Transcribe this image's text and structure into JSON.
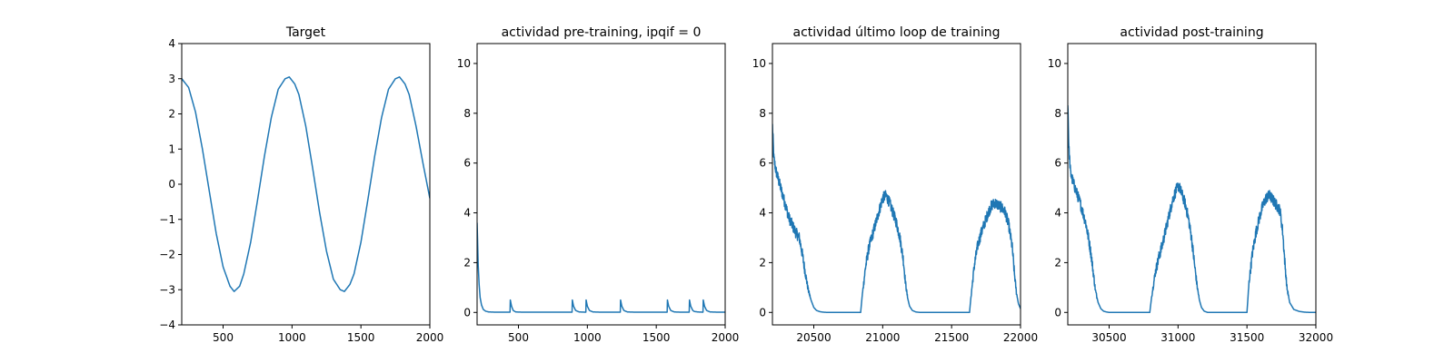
{
  "chart_data": [
    {
      "type": "line",
      "title": "Target",
      "xlim": [
        200,
        2000
      ],
      "ylim": [
        -4,
        4
      ],
      "xticks": [
        500,
        1000,
        1500,
        2000
      ],
      "xtick_labels": [
        "500",
        "1000",
        "1500",
        "2000"
      ],
      "yticks": [
        -4,
        -3,
        -2,
        -1,
        0,
        1,
        2,
        3,
        4
      ],
      "ytick_labels": [
        "−4",
        "−3",
        "−2",
        "−1",
        "0",
        "1",
        "2",
        "3",
        "4"
      ],
      "grid": false,
      "color": "#1f77b4",
      "series": [
        {
          "x": [
            200,
            250,
            300,
            350,
            400,
            450,
            500,
            550,
            580,
            620,
            650,
            700,
            750,
            800,
            850,
            900,
            950,
            980,
            1020,
            1050,
            1100,
            1150,
            1200,
            1250,
            1300,
            1350,
            1380,
            1420,
            1450,
            1500,
            1550,
            1600,
            1650,
            1700,
            1750,
            1780,
            1820,
            1850,
            1900,
            1950,
            2000
          ],
          "y": [
            3.0,
            2.75,
            2.05,
            1.0,
            -0.2,
            -1.4,
            -2.35,
            -2.9,
            -3.05,
            -2.9,
            -2.55,
            -1.65,
            -0.45,
            0.8,
            1.9,
            2.7,
            3.0,
            3.05,
            2.85,
            2.55,
            1.65,
            0.45,
            -0.8,
            -1.9,
            -2.7,
            -3.0,
            -3.05,
            -2.85,
            -2.55,
            -1.65,
            -0.45,
            0.8,
            1.9,
            2.7,
            3.0,
            3.05,
            2.85,
            2.55,
            1.65,
            0.6,
            -0.4
          ]
        }
      ]
    },
    {
      "type": "line",
      "title": "actividad pre-training, ipqif = 0",
      "xlim": [
        200,
        2000
      ],
      "ylim": [
        -0.5,
        10.8
      ],
      "xticks": [
        500,
        1000,
        1500,
        2000
      ],
      "xtick_labels": [
        "500",
        "1000",
        "1500",
        "2000"
      ],
      "yticks": [
        0,
        2,
        4,
        6,
        8,
        10
      ],
      "ytick_labels": [
        "0",
        "2",
        "4",
        "6",
        "8",
        "10"
      ],
      "grid": false,
      "color": "#1f77b4",
      "series": [
        {
          "x": [
            200,
            203,
            208,
            215,
            222,
            232,
            245,
            262,
            285,
            330,
            380,
            439,
            441,
            450,
            462,
            480,
            530,
            600,
            700,
            800,
            889,
            891,
            900,
            915,
            940,
            989,
            991,
            1000,
            1015,
            1040,
            1100,
            1200,
            1239,
            1241,
            1250,
            1265,
            1290,
            1350,
            1450,
            1540,
            1579,
            1581,
            1590,
            1605,
            1630,
            1680,
            1739,
            1741,
            1750,
            1765,
            1775,
            1800,
            1839,
            1841,
            1850,
            1865,
            1890,
            1950,
            2000
          ],
          "y": [
            3.6,
            3.0,
            1.9,
            1.1,
            0.6,
            0.3,
            0.12,
            0.05,
            0.02,
            0.01,
            0.01,
            0.01,
            0.5,
            0.25,
            0.08,
            0.02,
            0.01,
            0.01,
            0.01,
            0.01,
            0.01,
            0.5,
            0.25,
            0.08,
            0.02,
            0.01,
            0.5,
            0.25,
            0.08,
            0.02,
            0.01,
            0.01,
            0.01,
            0.5,
            0.25,
            0.08,
            0.02,
            0.01,
            0.01,
            0.01,
            0.01,
            0.5,
            0.25,
            0.08,
            0.02,
            0.01,
            0.01,
            0.5,
            0.25,
            0.08,
            0.04,
            0.02,
            0.01,
            0.5,
            0.25,
            0.08,
            0.02,
            0.01,
            0.01
          ]
        }
      ]
    },
    {
      "type": "line",
      "title": "actividad último loop de training",
      "xlim": [
        20200,
        22000
      ],
      "ylim": [
        -0.5,
        10.8
      ],
      "xticks": [
        20500,
        21000,
        21500,
        22000
      ],
      "xtick_labels": [
        "20500",
        "21000",
        "21500",
        "22000"
      ],
      "yticks": [
        0,
        2,
        4,
        6,
        8,
        10
      ],
      "ytick_labels": [
        "0",
        "2",
        "4",
        "6",
        "8",
        "10"
      ],
      "grid": false,
      "color": "#1f77b4",
      "noise": 0.22,
      "series": [
        {
          "x": [
            20200,
            20210,
            20225,
            20250,
            20275,
            20300,
            20320,
            20345,
            20370,
            20395,
            20415,
            20435,
            20460,
            20480,
            20500,
            20520,
            20545,
            20570,
            20600,
            20650,
            20700,
            20750,
            20800,
            20840,
            20850,
            20875,
            20900,
            20925,
            20950,
            20975,
            21000,
            21025,
            21050,
            21075,
            21100,
            21125,
            21150,
            21165,
            21180,
            21195,
            21215,
            21240,
            21270,
            21300,
            21350,
            21400,
            21450,
            21500,
            21550,
            21600,
            21630,
            21640,
            21665,
            21690,
            21715,
            21740,
            21765,
            21790,
            21815,
            21840,
            21865,
            21890,
            21915,
            21940,
            21955,
            21970,
            21985,
            22000
          ],
          "y": [
            7.5,
            6.2,
            5.7,
            5.2,
            4.7,
            4.2,
            3.8,
            3.5,
            3.2,
            3.0,
            2.4,
            1.7,
            0.9,
            0.5,
            0.2,
            0.08,
            0.03,
            0.01,
            0.0,
            0.0,
            0.0,
            0.0,
            0.0,
            0.0,
            0.6,
            1.8,
            2.6,
            3.1,
            3.6,
            4.1,
            4.6,
            4.7,
            4.4,
            4.0,
            3.6,
            3.0,
            2.1,
            1.2,
            0.6,
            0.25,
            0.08,
            0.02,
            0.0,
            0.0,
            0.0,
            0.0,
            0.0,
            0.0,
            0.0,
            0.0,
            0.0,
            0.6,
            1.9,
            2.7,
            3.2,
            3.6,
            4.0,
            4.3,
            4.4,
            4.3,
            4.2,
            4.0,
            3.5,
            2.6,
            1.6,
            0.8,
            0.35,
            0.15
          ]
        }
      ]
    },
    {
      "type": "line",
      "title": "actividad post-training",
      "xlim": [
        30200,
        32000
      ],
      "ylim": [
        -0.5,
        10.8
      ],
      "xticks": [
        30500,
        31000,
        31500,
        32000
      ],
      "xtick_labels": [
        "30500",
        "31000",
        "31500",
        "32000"
      ],
      "yticks": [
        0,
        2,
        4,
        6,
        8,
        10
      ],
      "ytick_labels": [
        "0",
        "2",
        "4",
        "6",
        "8",
        "10"
      ],
      "grid": false,
      "color": "#1f77b4",
      "noise": 0.22,
      "series": [
        {
          "x": [
            30200,
            30208,
            30220,
            30240,
            30265,
            30290,
            30310,
            30330,
            30350,
            30370,
            30385,
            30400,
            30420,
            30440,
            30460,
            30480,
            30500,
            30550,
            30600,
            30650,
            30700,
            30750,
            30795,
            30810,
            30835,
            30860,
            30885,
            30910,
            30935,
            30960,
            30985,
            31005,
            31025,
            31050,
            31075,
            31100,
            31120,
            31140,
            31155,
            31170,
            31190,
            31215,
            31250,
            31300,
            31350,
            31400,
            31450,
            31500,
            31515,
            31540,
            31565,
            31590,
            31615,
            31640,
            31665,
            31690,
            31715,
            31740,
            31760,
            31775,
            31790,
            31810,
            31840,
            31880,
            31920,
            31960,
            32000
          ],
          "y": [
            8.5,
            6.6,
            5.6,
            5.2,
            4.8,
            4.4,
            4.0,
            3.6,
            3.0,
            2.3,
            1.6,
            0.9,
            0.4,
            0.15,
            0.05,
            0.02,
            0.0,
            0.0,
            0.0,
            0.0,
            0.0,
            0.0,
            0.0,
            0.7,
            1.6,
            2.2,
            2.7,
            3.3,
            3.9,
            4.5,
            4.9,
            5.1,
            4.8,
            4.4,
            3.8,
            2.9,
            1.9,
            1.0,
            0.5,
            0.2,
            0.05,
            0.0,
            0.0,
            0.0,
            0.0,
            0.0,
            0.0,
            0.0,
            1.2,
            2.4,
            3.2,
            3.8,
            4.3,
            4.6,
            4.7,
            4.5,
            4.3,
            4.1,
            3.2,
            2.0,
            1.0,
            0.4,
            0.12,
            0.04,
            0.01,
            0.0,
            0.0
          ]
        }
      ]
    }
  ]
}
